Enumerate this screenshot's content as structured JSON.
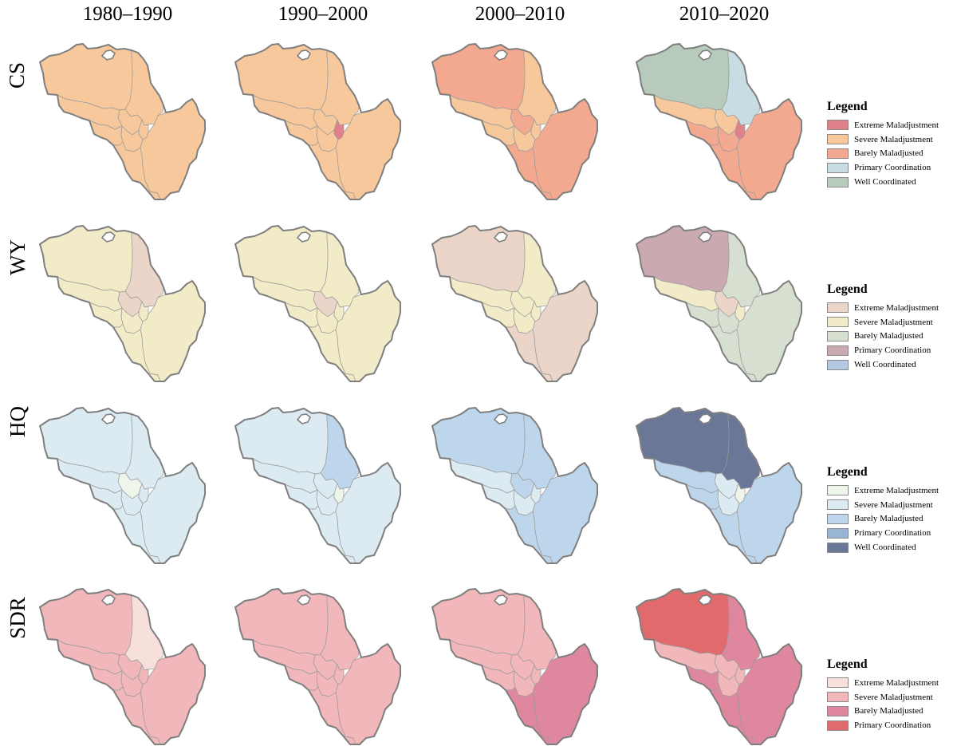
{
  "columns": [
    "1980–1990",
    "1990–2000",
    "2000–2010",
    "2010–2020"
  ],
  "rows": [
    {
      "label": "CS",
      "legend_title": "Legend",
      "classes": [
        {
          "label": "Extreme Maladjustment",
          "color": "#e08088"
        },
        {
          "label": "Severe Maladjustment",
          "color": "#f7c89b"
        },
        {
          "label": "Barely Maladjusted",
          "color": "#f3a98f"
        },
        {
          "label": "Primary Coordination",
          "color": "#c8dde3"
        },
        {
          "label": "Well Coordinated",
          "color": "#b7cabc"
        }
      ],
      "maps": [
        {
          "NW": 1,
          "NE": 1,
          "C": 1,
          "CW": 1,
          "CE": 1,
          "SW": 1,
          "SC": 1,
          "S": 1,
          "SE": 1
        },
        {
          "NW": 1,
          "NE": 1,
          "C": 1,
          "CW": 1,
          "CE": 0,
          "SW": 1,
          "SC": 1,
          "S": 1,
          "SE": 1
        },
        {
          "NW": 2,
          "NE": 1,
          "C": 2,
          "CW": 1,
          "CE": 1,
          "SW": 1,
          "SC": 1,
          "S": 2,
          "SE": 2
        },
        {
          "NW": 4,
          "NE": 3,
          "C": 1,
          "CW": 1,
          "CE": 0,
          "SW": 2,
          "SC": 2,
          "S": 2,
          "SE": 2
        }
      ]
    },
    {
      "label": "WY",
      "legend_title": "Legend",
      "classes": [
        {
          "label": "Extreme Maladjustment",
          "color": "#ead5c8"
        },
        {
          "label": "Severe Maladjustment",
          "color": "#f2ebc8"
        },
        {
          "label": "Barely Maladjusted",
          "color": "#d7dfd0"
        },
        {
          "label": "Primary Coordination",
          "color": "#cba9b0"
        },
        {
          "label": "Well Coordinated",
          "color": "#b3c9e2"
        }
      ],
      "maps": [
        {
          "NW": 1,
          "NE": 0,
          "C": 0,
          "CW": 1,
          "CE": 1,
          "SW": 1,
          "SC": 1,
          "S": 1,
          "SE": 1
        },
        {
          "NW": 1,
          "NE": 1,
          "C": 0,
          "CW": 1,
          "CE": 1,
          "SW": 1,
          "SC": 1,
          "S": 1,
          "SE": 1
        },
        {
          "NW": 0,
          "NE": 1,
          "C": 1,
          "CW": 1,
          "CE": 1,
          "SW": 1,
          "SC": 1,
          "S": 0,
          "SE": 0
        },
        {
          "NW": 3,
          "NE": 2,
          "C": 0,
          "CW": 1,
          "CE": 1,
          "SW": 2,
          "SC": 2,
          "S": 2,
          "SE": 2
        }
      ]
    },
    {
      "label": "HQ",
      "legend_title": "Legend",
      "classes": [
        {
          "label": "Extreme Maladjustment",
          "color": "#eef6ec"
        },
        {
          "label": "Severe Maladjustment",
          "color": "#dceaf2"
        },
        {
          "label": "Barely Maladjusted",
          "color": "#bed6eb"
        },
        {
          "label": "Primary Coordination",
          "color": "#98b5d5"
        },
        {
          "label": "Well Coordinated",
          "color": "#6b7796"
        }
      ],
      "maps": [
        {
          "NW": 1,
          "NE": 1,
          "C": 0,
          "CW": 1,
          "CE": 1,
          "SW": 1,
          "SC": 1,
          "S": 1,
          "SE": 1
        },
        {
          "NW": 1,
          "NE": 2,
          "C": 1,
          "CW": 1,
          "CE": 0,
          "SW": 1,
          "SC": 1,
          "S": 1,
          "SE": 1
        },
        {
          "NW": 2,
          "NE": 2,
          "C": 2,
          "CW": 1,
          "CE": 1,
          "SW": 1,
          "SC": 1,
          "S": 2,
          "SE": 2
        },
        {
          "NW": 4,
          "NE": 4,
          "C": 1,
          "CW": 2,
          "CE": 0,
          "SW": 2,
          "SC": 1,
          "S": 2,
          "SE": 2
        }
      ]
    },
    {
      "label": "SDR",
      "legend_title": "Legend",
      "classes": [
        {
          "label": "Extreme Maladjustment",
          "color": "#f7e0dc"
        },
        {
          "label": "Severe Maladjustment",
          "color": "#f1b7bb"
        },
        {
          "label": "Barely Maladjusted",
          "color": "#e087a0"
        },
        {
          "label": "Primary Coordination",
          "color": "#e06a6c"
        }
      ],
      "maps": [
        {
          "NW": 1,
          "NE": 0,
          "C": 1,
          "CW": 1,
          "CE": 1,
          "SW": 1,
          "SC": 1,
          "S": 1,
          "SE": 1
        },
        {
          "NW": 1,
          "NE": 1,
          "C": 1,
          "CW": 1,
          "CE": 1,
          "SW": 1,
          "SC": 1,
          "S": 1,
          "SE": 1
        },
        {
          "NW": 1,
          "NE": 1,
          "C": 1,
          "CW": 1,
          "CE": 1,
          "SW": 1,
          "SC": 1,
          "S": 2,
          "SE": 2
        },
        {
          "NW": 3,
          "NE": 2,
          "C": 1,
          "CW": 1,
          "CE": 1,
          "SW": 2,
          "SC": 1,
          "S": 2,
          "SE": 2
        }
      ]
    }
  ]
}
